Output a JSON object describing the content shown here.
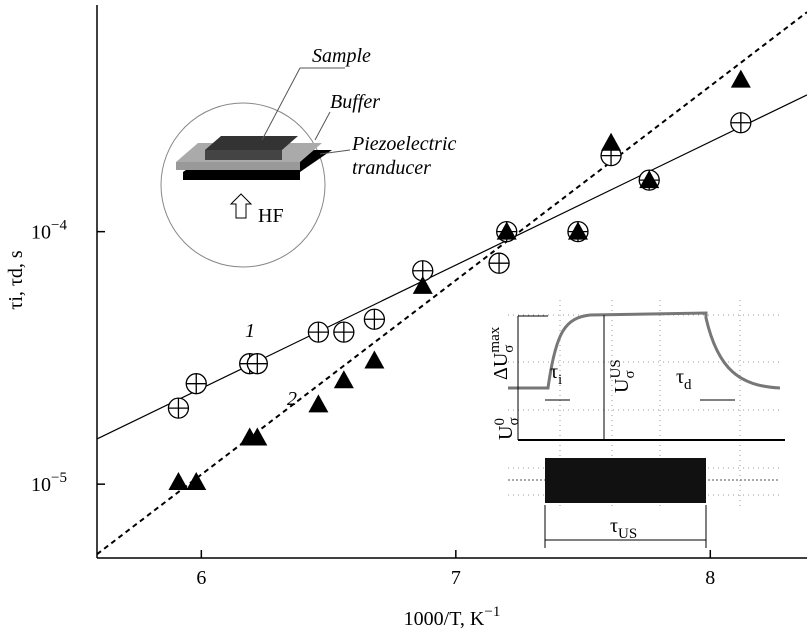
{
  "chart_data": {
    "type": "scatter",
    "xlabel": {
      "text": "1000/T, K",
      "sup": "−1"
    },
    "ylabel": "τi, τd, s",
    "xlim": [
      5.59,
      8.38
    ],
    "xticks": [
      6,
      7,
      8
    ],
    "ylim": [
      5.1e-06,
      0.00079
    ],
    "log_y": true,
    "yticks": [
      {
        "value": 1e-05,
        "label": "10",
        "sup": "−5"
      },
      {
        "value": 0.0001,
        "label": "10",
        "sup": "−4"
      }
    ],
    "series": [
      {
        "name": "1",
        "marker": "circle-plus",
        "color": "#000000",
        "x": [
          5.91,
          5.98,
          6.19,
          6.22,
          6.46,
          6.56,
          6.68,
          6.87,
          7.17,
          7.2,
          7.48,
          7.61,
          7.76,
          8.12
        ],
        "values": [
          2e-05,
          2.5e-05,
          3e-05,
          3e-05,
          4e-05,
          4e-05,
          4.5e-05,
          7e-05,
          7.5e-05,
          0.0001,
          0.0001,
          0.0002,
          0.00016,
          0.00027
        ],
        "fit_x": [
          5.59,
          8.38
        ],
        "fit_values": [
          1.51e-05,
          0.000348
        ],
        "fit_dashed": false
      },
      {
        "name": "2",
        "marker": "triangle",
        "color": "#000000",
        "x": [
          5.91,
          5.98,
          6.19,
          6.22,
          6.46,
          6.56,
          6.68,
          6.87,
          7.2,
          7.48,
          7.61,
          7.76,
          8.12
        ],
        "values": [
          1.02e-05,
          1.02e-05,
          1.53e-05,
          1.53e-05,
          2.07e-05,
          2.58e-05,
          3.09e-05,
          6.1e-05,
          0.0001,
          0.0001,
          0.000225,
          0.00016,
          0.0004
        ],
        "fit_x": [
          5.59,
          8.38
        ],
        "fit_values": [
          5.28e-06,
          0.00074
        ],
        "fit_dashed": true
      }
    ],
    "annotations": [
      {
        "text": "Sample"
      },
      {
        "text": "Buffer"
      },
      {
        "text": "Piezoelectric"
      },
      {
        "text": "tranducer"
      },
      {
        "text": "HF"
      },
      {
        "text": "ΔU",
        "sub": "σ",
        "sup": "max"
      },
      {
        "text": "U",
        "sub": "σ",
        "sup": "US"
      },
      {
        "text": "U",
        "sub": "σ",
        "sup": "0"
      },
      {
        "text": "τ",
        "sub": "i"
      },
      {
        "text": "τ",
        "sub": "d"
      },
      {
        "text": "τ",
        "sub": "US"
      }
    ]
  }
}
